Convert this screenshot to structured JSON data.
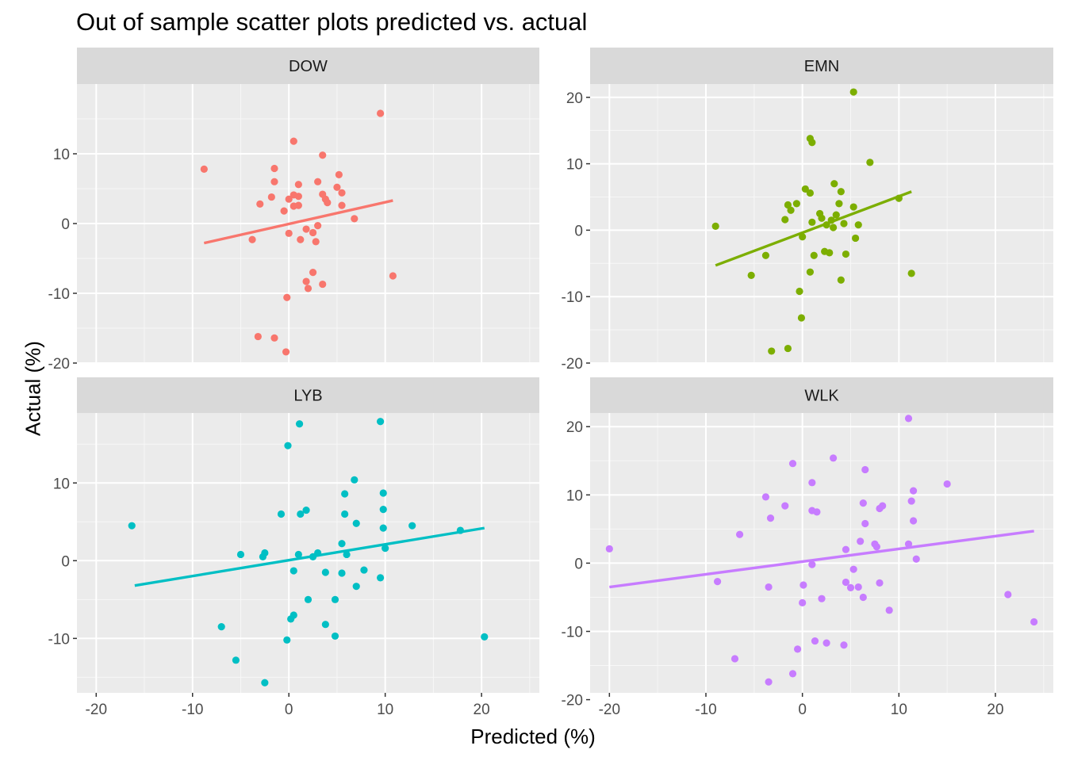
{
  "chart_data": {
    "type": "scatter",
    "title": "Out of sample scatter plots predicted vs. actual",
    "xlabel": "Predicted (%)",
    "ylabel": "Actual (%)",
    "xlim": [
      -22,
      26
    ],
    "x_ticks": [
      -20,
      -10,
      0,
      10,
      20
    ],
    "grid": true,
    "legend": "none",
    "facets": [
      {
        "name": "DOW",
        "color": "#F8766D",
        "ylim": [
          -20,
          20
        ],
        "y_ticks": [
          -20,
          -10,
          0,
          10
        ],
        "fit_line": {
          "x": [
            -8.8,
            10.8
          ],
          "y": [
            -2.8,
            3.3
          ]
        },
        "points": [
          [
            9.5,
            15.8
          ],
          [
            0.5,
            11.8
          ],
          [
            -8.8,
            7.8
          ],
          [
            -1.5,
            7.9
          ],
          [
            3.5,
            9.8
          ],
          [
            -1.5,
            6.0
          ],
          [
            1.0,
            5.6
          ],
          [
            5.2,
            7.0
          ],
          [
            3.0,
            6.0
          ],
          [
            5.0,
            5.2
          ],
          [
            -3.0,
            2.8
          ],
          [
            -1.8,
            3.8
          ],
          [
            0.0,
            3.5
          ],
          [
            0.5,
            4.1
          ],
          [
            1.0,
            3.9
          ],
          [
            3.5,
            4.2
          ],
          [
            4.0,
            3.0
          ],
          [
            -0.5,
            1.8
          ],
          [
            0.5,
            2.5
          ],
          [
            1.0,
            2.6
          ],
          [
            3.8,
            3.5
          ],
          [
            5.5,
            2.6
          ],
          [
            6.8,
            0.7
          ],
          [
            -3.8,
            -2.3
          ],
          [
            0.0,
            -1.4
          ],
          [
            1.2,
            -2.3
          ],
          [
            1.8,
            -0.8
          ],
          [
            2.5,
            -1.3
          ],
          [
            3.0,
            -0.3
          ],
          [
            2.8,
            -2.6
          ],
          [
            1.8,
            -8.3
          ],
          [
            2.0,
            -9.3
          ],
          [
            2.5,
            -7.0
          ],
          [
            3.5,
            -8.7
          ],
          [
            10.8,
            -7.5
          ],
          [
            -0.2,
            -10.6
          ],
          [
            -3.2,
            -16.2
          ],
          [
            -1.5,
            -16.4
          ],
          [
            -0.3,
            -18.4
          ],
          [
            5.5,
            4.4
          ]
        ]
      },
      {
        "name": "EMN",
        "color": "#7CAE00",
        "ylim": [
          -20,
          22
        ],
        "y_ticks": [
          -20,
          -10,
          0,
          10,
          20
        ],
        "fit_line": {
          "x": [
            -9.0,
            11.3
          ],
          "y": [
            -5.3,
            5.8
          ]
        },
        "points": [
          [
            5.3,
            20.8
          ],
          [
            0.8,
            13.8
          ],
          [
            1.0,
            13.2
          ],
          [
            7.0,
            10.2
          ],
          [
            0.3,
            6.2
          ],
          [
            0.8,
            5.6
          ],
          [
            3.3,
            7.0
          ],
          [
            4.0,
            5.8
          ],
          [
            -1.5,
            3.8
          ],
          [
            -0.6,
            4.0
          ],
          [
            -1.2,
            3.0
          ],
          [
            1.8,
            2.5
          ],
          [
            3.8,
            4.0
          ],
          [
            5.3,
            3.5
          ],
          [
            10.0,
            4.8
          ],
          [
            -9.0,
            0.6
          ],
          [
            -1.8,
            1.6
          ],
          [
            1.0,
            1.2
          ],
          [
            2.5,
            0.8
          ],
          [
            3.0,
            1.5
          ],
          [
            3.5,
            2.3
          ],
          [
            4.3,
            1.0
          ],
          [
            5.8,
            0.8
          ],
          [
            0.0,
            -1.0
          ],
          [
            1.2,
            -3.8
          ],
          [
            -3.8,
            -3.8
          ],
          [
            2.3,
            -3.2
          ],
          [
            2.8,
            -3.4
          ],
          [
            4.5,
            -3.6
          ],
          [
            5.5,
            -1.2
          ],
          [
            -5.3,
            -6.8
          ],
          [
            0.8,
            -6.3
          ],
          [
            4.0,
            -7.5
          ],
          [
            11.3,
            -6.5
          ],
          [
            -0.3,
            -9.2
          ],
          [
            -0.1,
            -13.2
          ],
          [
            -3.2,
            -18.2
          ],
          [
            -1.5,
            -17.8
          ],
          [
            2.0,
            1.8
          ],
          [
            3.2,
            0.4
          ]
        ]
      },
      {
        "name": "LYB",
        "color": "#00BFC4",
        "ylim": [
          -17,
          19
        ],
        "y_ticks": [
          -10,
          0,
          10
        ],
        "fit_line": {
          "x": [
            -16.0,
            20.3
          ],
          "y": [
            -3.2,
            4.2
          ]
        },
        "points": [
          [
            1.1,
            17.6
          ],
          [
            9.5,
            17.9
          ],
          [
            -0.1,
            14.8
          ],
          [
            6.8,
            10.4
          ],
          [
            5.8,
            8.6
          ],
          [
            9.8,
            8.7
          ],
          [
            1.8,
            6.5
          ],
          [
            1.2,
            6.0
          ],
          [
            -0.8,
            6.0
          ],
          [
            5.8,
            6.0
          ],
          [
            9.8,
            6.6
          ],
          [
            7.0,
            4.8
          ],
          [
            9.8,
            4.2
          ],
          [
            12.8,
            4.5
          ],
          [
            17.8,
            3.9
          ],
          [
            -16.3,
            4.5
          ],
          [
            -5.0,
            0.8
          ],
          [
            -2.5,
            1.0
          ],
          [
            -2.7,
            0.5
          ],
          [
            1.0,
            0.8
          ],
          [
            3.0,
            1.0
          ],
          [
            5.5,
            2.2
          ],
          [
            10.0,
            1.6
          ],
          [
            3.8,
            -1.5
          ],
          [
            7.8,
            -1.2
          ],
          [
            0.5,
            -1.3
          ],
          [
            5.5,
            -1.6
          ],
          [
            7.0,
            -3.3
          ],
          [
            9.5,
            -2.2
          ],
          [
            2.0,
            -5.0
          ],
          [
            4.8,
            -5.0
          ],
          [
            -7.0,
            -8.5
          ],
          [
            3.8,
            -8.2
          ],
          [
            4.8,
            -9.7
          ],
          [
            -0.2,
            -10.2
          ],
          [
            0.5,
            -7.0
          ],
          [
            0.2,
            -7.5
          ],
          [
            -5.5,
            -12.8
          ],
          [
            -2.5,
            -15.7
          ],
          [
            20.3,
            -9.8
          ],
          [
            2.5,
            0.5
          ],
          [
            6.0,
            0.8
          ]
        ]
      },
      {
        "name": "WLK",
        "color": "#C77CFF",
        "ylim": [
          -19,
          22
        ],
        "y_ticks": [
          -20,
          -10,
          0,
          10,
          20
        ],
        "fit_line": {
          "x": [
            -20.0,
            24.0
          ],
          "y": [
            -3.5,
            4.7
          ]
        },
        "points": [
          [
            11.0,
            21.2
          ],
          [
            -1.0,
            14.6
          ],
          [
            3.2,
            15.4
          ],
          [
            6.5,
            13.7
          ],
          [
            1.0,
            11.8
          ],
          [
            15.0,
            11.6
          ],
          [
            11.5,
            10.6
          ],
          [
            -3.8,
            9.7
          ],
          [
            11.3,
            9.1
          ],
          [
            -1.8,
            8.4
          ],
          [
            6.3,
            8.8
          ],
          [
            8.0,
            8.0
          ],
          [
            8.3,
            8.4
          ],
          [
            1.0,
            7.7
          ],
          [
            1.5,
            7.5
          ],
          [
            -3.3,
            6.6
          ],
          [
            11.5,
            6.2
          ],
          [
            6.5,
            5.8
          ],
          [
            -6.5,
            4.2
          ],
          [
            6.0,
            3.2
          ],
          [
            7.5,
            2.8
          ],
          [
            7.7,
            2.4
          ],
          [
            11.0,
            2.8
          ],
          [
            -20.0,
            2.1
          ],
          [
            4.5,
            2.0
          ],
          [
            11.8,
            0.6
          ],
          [
            1.0,
            -0.2
          ],
          [
            5.3,
            -0.9
          ],
          [
            -8.8,
            -2.7
          ],
          [
            -3.5,
            -3.5
          ],
          [
            0.1,
            -3.2
          ],
          [
            4.5,
            -2.8
          ],
          [
            5.0,
            -3.6
          ],
          [
            5.8,
            -3.5
          ],
          [
            8.0,
            -2.9
          ],
          [
            2.0,
            -5.2
          ],
          [
            0.0,
            -5.8
          ],
          [
            6.3,
            -5.0
          ],
          [
            9.0,
            -6.9
          ],
          [
            21.3,
            -4.6
          ],
          [
            -7.0,
            -14.0
          ],
          [
            -0.5,
            -12.6
          ],
          [
            1.3,
            -11.4
          ],
          [
            2.5,
            -11.7
          ],
          [
            4.3,
            -12.0
          ],
          [
            -3.5,
            -17.4
          ],
          [
            -1.0,
            -16.2
          ],
          [
            24.0,
            -8.6
          ]
        ]
      }
    ]
  }
}
